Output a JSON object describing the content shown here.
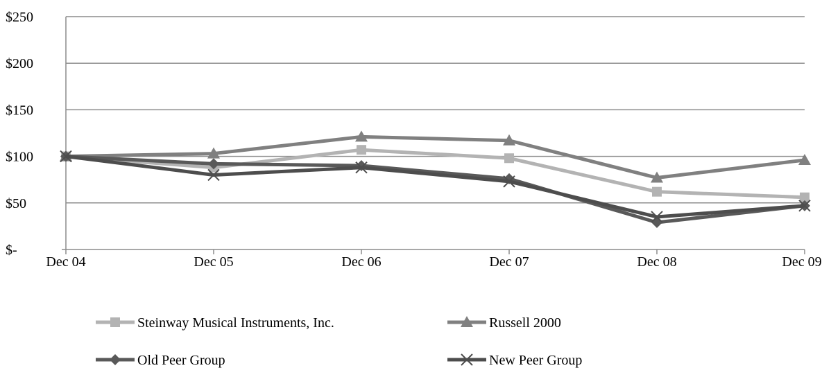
{
  "chart_data": {
    "type": "line",
    "categories": [
      "Dec 04",
      "Dec 05",
      "Dec 06",
      "Dec 07",
      "Dec 08",
      "Dec 09"
    ],
    "ylim": [
      0,
      250
    ],
    "yticks": [
      {
        "value": 0,
        "label": "$-"
      },
      {
        "value": 50,
        "label": "$50"
      },
      {
        "value": 100,
        "label": "$100"
      },
      {
        "value": 150,
        "label": "$150"
      },
      {
        "value": 200,
        "label": "$200"
      },
      {
        "value": 250,
        "label": "$250"
      }
    ],
    "grid": true,
    "legend_position": "bottom",
    "series": [
      {
        "name": "Steinway Musical Instruments, Inc.",
        "color": "#b3b3b3",
        "marker": "square",
        "values": [
          100,
          88,
          107,
          98,
          62,
          56
        ]
      },
      {
        "name": "Russell 2000",
        "color": "#808080",
        "marker": "triangle",
        "values": [
          100,
          103,
          121,
          117,
          77,
          96
        ]
      },
      {
        "name": "Old Peer Group",
        "color": "#595959",
        "marker": "diamond",
        "values": [
          100,
          92,
          90,
          76,
          29,
          47
        ]
      },
      {
        "name": "New Peer Group",
        "color": "#4d4d4d",
        "marker": "x",
        "values": [
          100,
          80,
          88,
          73,
          35,
          47
        ]
      }
    ]
  }
}
